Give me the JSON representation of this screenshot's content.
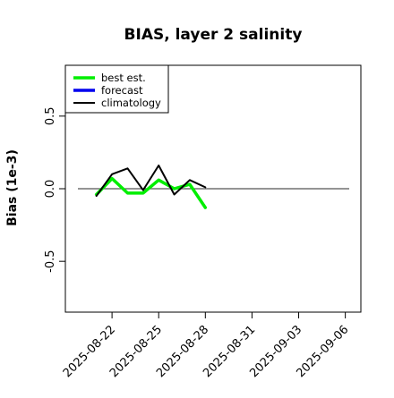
{
  "chart_data": {
    "type": "line",
    "title": "BIAS, layer 2 salinity",
    "xlabel": "",
    "ylabel": "Bias (1e-3)",
    "xlim": [
      "2025-08-19",
      "2025-09-07"
    ],
    "ylim": [
      -0.85,
      0.85
    ],
    "yticks": [
      -0.5,
      0.0,
      0.5
    ],
    "ytick_labels": [
      "-0.5",
      "0.0",
      "0.5"
    ],
    "xticks": [
      "2025-08-22",
      "2025-08-25",
      "2025-08-28",
      "2025-08-31",
      "2025-09-03",
      "2025-09-06"
    ],
    "xtick_labels": [
      "2025-08-22",
      "2025-08-25",
      "2025-08-28",
      "2025-08-31",
      "2025-09-03",
      "2025-09-06"
    ],
    "highlighted_tick": {
      "label": "2025-08-28",
      "color": "#228B22"
    },
    "reference_line": {
      "y": 0.0,
      "color": "#555555"
    },
    "grid": false,
    "legend": {
      "position": "top-left"
    },
    "series": [
      {
        "name": "best est.",
        "color": "#00ee00",
        "x": [
          "2025-08-21",
          "2025-08-22",
          "2025-08-23",
          "2025-08-24",
          "2025-08-25",
          "2025-08-26",
          "2025-08-27",
          "2025-08-28"
        ],
        "values": [
          -0.04,
          0.07,
          -0.03,
          -0.03,
          0.06,
          0.0,
          0.03,
          -0.13
        ]
      },
      {
        "name": "forecast",
        "color": "#0000ee",
        "x": [],
        "values": []
      },
      {
        "name": "climatology",
        "color": "#000000",
        "x": [
          "2025-08-21",
          "2025-08-22",
          "2025-08-23",
          "2025-08-24",
          "2025-08-25",
          "2025-08-26",
          "2025-08-27",
          "2025-08-28"
        ],
        "values": [
          -0.05,
          0.1,
          0.14,
          -0.01,
          0.16,
          -0.04,
          0.06,
          0.01
        ]
      }
    ]
  }
}
